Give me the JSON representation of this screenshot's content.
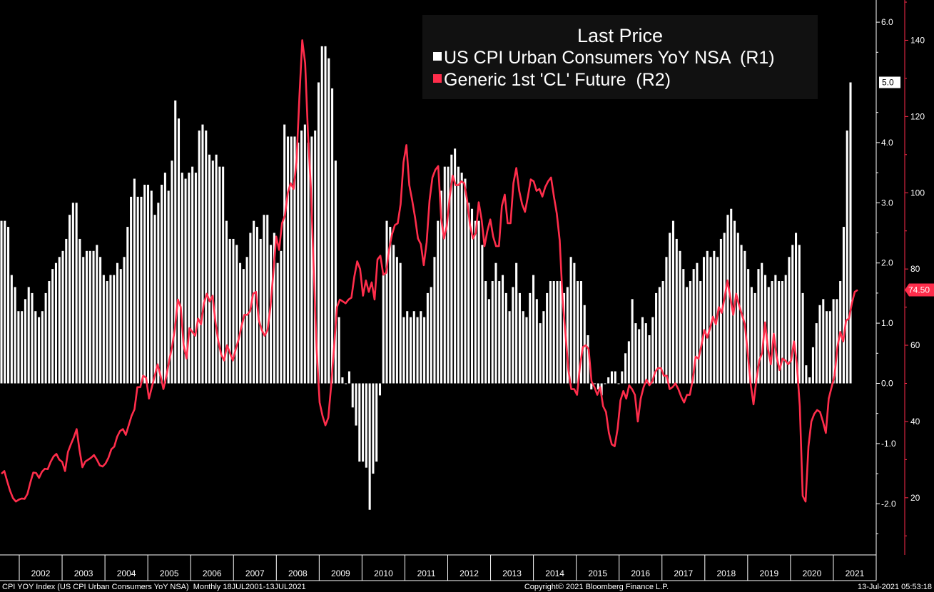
{
  "chart_data": {
    "type": "bar",
    "title": "Last Price",
    "legend_position": "top-right",
    "x_labels": [
      "2002",
      "2003",
      "2004",
      "2005",
      "2006",
      "2007",
      "2008",
      "2009",
      "2010",
      "2011",
      "2012",
      "2013",
      "2014",
      "2015",
      "2016",
      "2017",
      "2018",
      "2019",
      "2020",
      "2021"
    ],
    "axes": {
      "r1": {
        "ylim": [
          -2.6,
          6.3
        ],
        "ticks": [
          6.0,
          4.0,
          3.0,
          2.0,
          1.0,
          0.0,
          -1.0,
          -2.0
        ],
        "tick_labels": [
          "6.0",
          "4.0",
          "3.0",
          "2.0",
          "1.0",
          "0.0",
          "-1.0",
          "-2.0"
        ]
      },
      "r2": {
        "ylim": [
          10,
          150
        ],
        "ticks": [
          140,
          120,
          100,
          80,
          60,
          40,
          20
        ],
        "tick_labels": [
          "140",
          "120",
          "100",
          "80",
          "60",
          "40",
          "20"
        ]
      }
    },
    "series": [
      {
        "name": "US CPI Urban Consumers YoY NSA  (R1)",
        "type": "bar",
        "axis": "r1",
        "color": "#ffffff",
        "last_value": 5.0,
        "last_label": "5.0",
        "values": [
          2.7,
          2.7,
          2.6,
          1.8,
          1.6,
          1.2,
          1.2,
          1.4,
          1.6,
          1.5,
          1.2,
          1.1,
          1.2,
          1.5,
          1.7,
          1.9,
          2.0,
          2.1,
          2.2,
          2.4,
          2.8,
          3.0,
          3.0,
          2.4,
          2.1,
          2.2,
          2.2,
          2.2,
          2.3,
          2.1,
          1.8,
          1.7,
          1.8,
          1.8,
          2.0,
          1.9,
          2.1,
          2.6,
          3.1,
          3.4,
          3.1,
          3.1,
          3.3,
          3.3,
          3.2,
          2.8,
          3.0,
          3.3,
          3.5,
          3.2,
          3.7,
          4.7,
          4.4,
          3.5,
          3.4,
          3.5,
          3.6,
          3.5,
          4.2,
          4.3,
          4.2,
          3.8,
          3.7,
          3.8,
          3.6,
          3.6,
          2.7,
          2.4,
          2.4,
          2.3,
          2.0,
          1.9,
          2.1,
          2.5,
          2.7,
          2.6,
          2.4,
          2.8,
          2.8,
          2.3,
          2.5,
          2.0,
          2.2,
          4.3,
          4.1,
          4.1,
          4.1,
          4.0,
          4.2,
          4.3,
          4.0,
          4.1,
          4.2,
          5.0,
          5.6,
          5.6,
          5.4,
          4.9,
          3.7,
          1.1,
          0.1,
          0.0,
          0.2,
          -0.4,
          -0.7,
          -1.3,
          -1.3,
          -1.4,
          -2.1,
          -1.5,
          -1.3,
          -0.2,
          1.8,
          2.7,
          2.6,
          2.3,
          2.1,
          2.0,
          1.1,
          1.2,
          1.1,
          1.2,
          1.1,
          1.2,
          1.1,
          1.5,
          1.6,
          2.1,
          2.7,
          3.2,
          3.6,
          3.6,
          3.8,
          3.9,
          3.6,
          3.5,
          3.4,
          3.0,
          2.9,
          2.7,
          2.7,
          2.3,
          1.7,
          1.4,
          1.7,
          2.0,
          1.7,
          1.8,
          1.5,
          1.2,
          1.6,
          2.0,
          1.5,
          1.2,
          1.1,
          1.5,
          1.8,
          1.4,
          1.0,
          1.2,
          1.5,
          1.7,
          1.7,
          1.7,
          1.7,
          1.5,
          1.6,
          2.1,
          2.0,
          1.7,
          1.7,
          1.3,
          0.8,
          -0.1,
          0.0,
          -0.1,
          -0.2,
          0.0,
          0.1,
          0.2,
          0.2,
          0.0,
          0.2,
          0.5,
          0.7,
          1.4,
          1.0,
          0.9,
          1.1,
          1.0,
          0.8,
          1.1,
          1.5,
          1.6,
          1.7,
          2.1,
          2.5,
          2.7,
          2.4,
          2.2,
          1.9,
          1.6,
          1.7,
          1.9,
          2.0,
          1.7,
          2.1,
          2.2,
          2.1,
          2.2,
          2.1,
          2.4,
          2.5,
          2.8,
          2.9,
          2.7,
          2.5,
          2.3,
          2.2,
          1.9,
          1.6,
          1.5,
          1.9,
          2.0,
          1.8,
          1.6,
          1.7,
          1.8,
          1.7,
          1.7,
          1.8,
          2.1,
          2.3,
          2.5,
          2.3,
          1.5,
          0.3,
          0.1,
          0.6,
          1.0,
          1.3,
          1.4,
          1.2,
          1.2,
          1.4,
          1.4,
          1.7,
          2.6,
          4.2,
          5.0
        ]
      },
      {
        "name": "Generic 1st 'CL' Future  (R2)",
        "type": "line",
        "axis": "r2",
        "color": "#ff2d4b",
        "last_value": 74.5,
        "last_label": "74.50",
        "values": [
          26.3,
          27.0,
          24.3,
          21.8,
          19.9,
          19.0,
          19.5,
          19.8,
          19.7,
          21.0,
          24.0,
          26.6,
          26.5,
          25.2,
          26.8,
          27.6,
          27.5,
          29.4,
          30.8,
          31.5,
          30.0,
          29.4,
          27.0,
          32.0,
          34.0,
          35.8,
          38.0,
          32.5,
          28.0,
          29.5,
          30.0,
          30.5,
          31.2,
          30.0,
          28.5,
          28.2,
          29.0,
          30.5,
          32.7,
          33.4,
          36.0,
          37.5,
          38.0,
          36.5,
          39.0,
          41.5,
          43.2,
          49.0,
          49.0,
          52.0,
          51.5,
          46.0,
          49.0,
          52.0,
          55.0,
          52.0,
          48.5,
          51.8,
          56.0,
          59.6,
          64.5,
          72.0,
          70.0,
          60.0,
          56.5,
          64.5,
          63.5,
          62.5,
          67.0,
          65.5,
          71.0,
          73.5,
          71.5,
          73.0,
          66.0,
          61.0,
          57.5,
          56.0,
          60.0,
          58.0,
          56.0,
          59.0,
          61.5,
          65.0,
          68.0,
          68.0,
          69.0,
          73.5,
          74.0,
          66.5,
          64.0,
          62.5,
          64.0,
          70.0,
          79.0,
          88.5,
          85.0,
          92.0,
          94.0,
          100.0,
          102.5,
          101.0,
          108.0,
          125.0,
          140.0,
          134.0,
          115.0,
          101.0,
          79.0,
          58.5,
          45.0,
          41.5,
          39.0,
          41.0,
          49.5,
          59.5,
          70.0,
          72.0,
          71.5,
          71.0,
          72.0,
          72.5,
          78.0,
          82.0,
          80.0,
          73.0,
          77.0,
          74.0,
          76.5,
          72.0,
          82.5,
          83.5,
          78.5,
          79.0,
          85.0,
          89.0,
          91.5,
          92.0,
          97.0,
          108.0,
          112.5,
          102.0,
          98.0,
          93.5,
          88.0,
          86.5,
          81.0,
          87.0,
          98.0,
          104.0,
          106.0,
          107.0,
          93.5,
          88.0,
          91.5,
          99.0,
          104.5,
          102.0,
          102.0,
          103.0,
          102.5,
          98.0,
          91.5,
          88.0,
          89.5,
          97.5,
          93.0,
          86.0,
          90.0,
          93.0,
          88.5,
          86.0,
          86.0,
          96.5,
          99.5,
          92.0,
          92.0,
          102.5,
          106.5,
          100.5,
          97.0,
          95.0,
          99.0,
          103.5,
          103.0,
          100.5,
          101.0,
          99.0,
          101.5,
          103.0,
          104.0,
          99.0,
          94.5,
          87.5,
          72.0,
          63.0,
          53.5,
          48.5,
          48.5,
          47.0,
          54.5,
          59.5,
          60.0,
          59.0,
          50.5,
          49.0,
          47.0,
          49.0,
          44.0,
          42.5,
          37.0,
          34.0,
          33.5,
          38.0,
          45.5,
          48.0,
          46.0,
          49.5,
          48.5,
          47.0,
          40.0,
          46.0,
          49.0,
          51.0,
          49.5,
          50.5,
          53.0,
          54.0,
          54.0,
          52.0,
          52.0,
          48.5,
          49.0,
          50.0,
          48.5,
          46.5,
          45.0,
          47.0,
          47.0,
          51.0,
          57.0,
          56.5,
          60.0,
          64.0,
          62.0,
          64.5,
          67.5,
          65.5,
          70.0,
          68.5,
          72.5,
          77.0,
          72.5,
          68.0,
          73.5,
          70.5,
          68.0,
          65.5,
          58.0,
          50.0,
          44.5,
          51.0,
          56.0,
          58.0,
          66.0,
          59.0,
          55.0,
          63.0,
          57.0,
          53.5,
          56.5,
          56.0,
          55.0,
          56.0,
          61.0,
          55.0,
          44.0,
          20.5,
          19.0,
          33.5,
          40.0,
          42.0,
          43.0,
          42.5,
          40.0,
          37.0,
          46.0,
          49.0,
          52.0,
          59.5,
          63.5,
          61.0,
          66.5,
          67.0,
          71.0,
          74.0,
          74.5
        ]
      }
    ],
    "footer": {
      "left": "CPI YOY Index (US CPI Urban Consumers YoY NSA)  Monthly 18JUL2001-13JUL2021",
      "center": "Copyright© 2021 Bloomberg Finance L.P.",
      "right": "13-Jul-2021 05:53:18"
    }
  }
}
